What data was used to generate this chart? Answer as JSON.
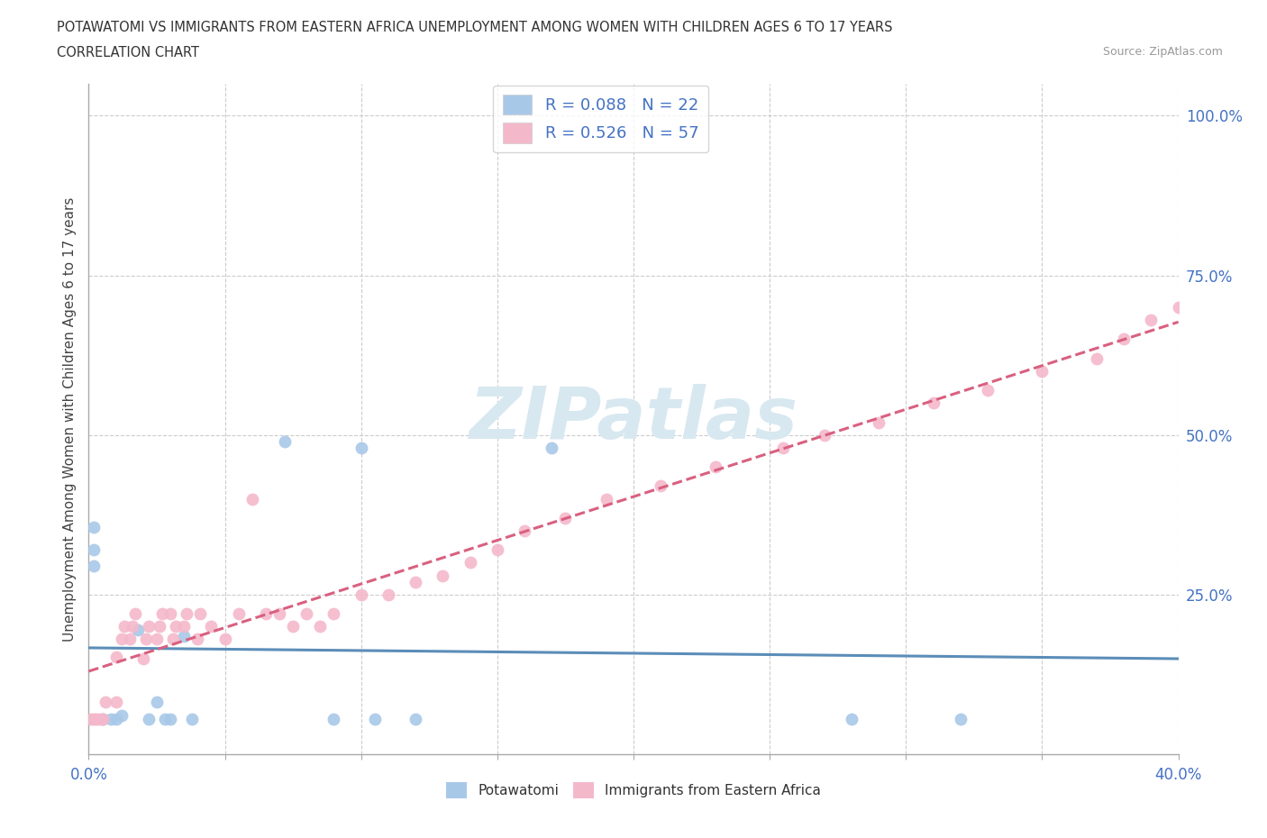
{
  "title_line1": "POTAWATOMI VS IMMIGRANTS FROM EASTERN AFRICA UNEMPLOYMENT AMONG WOMEN WITH CHILDREN AGES 6 TO 17 YEARS",
  "title_line2": "CORRELATION CHART",
  "source_text": "Source: ZipAtlas.com",
  "ylabel": "Unemployment Among Women with Children Ages 6 to 17 years",
  "xmin": 0.0,
  "xmax": 0.4,
  "ymin": 0.0,
  "ymax": 1.05,
  "color_blue": "#a8c8e8",
  "color_pink": "#f4b8cb",
  "color_blue_line": "#5b8db8",
  "color_pink_line": "#d96080",
  "legend_color": "#4472c4",
  "watermark_color": "#d8e8f0",
  "potawatomi_x": [
    0.002,
    0.002,
    0.002,
    0.005,
    0.008,
    0.01,
    0.012,
    0.018,
    0.022,
    0.025,
    0.028,
    0.03,
    0.035,
    0.038,
    0.072,
    0.09,
    0.1,
    0.105,
    0.12,
    0.17,
    0.28,
    0.32
  ],
  "potawatomi_y": [
    0.355,
    0.32,
    0.295,
    0.055,
    0.055,
    0.055,
    0.06,
    0.195,
    0.055,
    0.082,
    0.055,
    0.055,
    0.185,
    0.055,
    0.49,
    0.055,
    0.48,
    0.055,
    0.055,
    0.48,
    0.055,
    0.055
  ],
  "eastern_africa_x": [
    0.001,
    0.002,
    0.003,
    0.004,
    0.005,
    0.006,
    0.01,
    0.01,
    0.012,
    0.013,
    0.015,
    0.016,
    0.017,
    0.02,
    0.021,
    0.022,
    0.025,
    0.026,
    0.027,
    0.03,
    0.031,
    0.032,
    0.035,
    0.036,
    0.04,
    0.041,
    0.045,
    0.05,
    0.055,
    0.06,
    0.065,
    0.07,
    0.075,
    0.08,
    0.085,
    0.09,
    0.1,
    0.11,
    0.12,
    0.13,
    0.14,
    0.15,
    0.16,
    0.175,
    0.19,
    0.21,
    0.23,
    0.255,
    0.27,
    0.29,
    0.31,
    0.33,
    0.35,
    0.37,
    0.38,
    0.39,
    0.4
  ],
  "eastern_africa_y": [
    0.055,
    0.055,
    0.055,
    0.055,
    0.055,
    0.082,
    0.082,
    0.152,
    0.18,
    0.2,
    0.18,
    0.2,
    0.22,
    0.15,
    0.18,
    0.2,
    0.18,
    0.2,
    0.22,
    0.22,
    0.18,
    0.2,
    0.2,
    0.22,
    0.18,
    0.22,
    0.2,
    0.18,
    0.22,
    0.4,
    0.22,
    0.22,
    0.2,
    0.22,
    0.2,
    0.22,
    0.25,
    0.25,
    0.27,
    0.28,
    0.3,
    0.32,
    0.35,
    0.37,
    0.4,
    0.42,
    0.45,
    0.48,
    0.5,
    0.52,
    0.55,
    0.57,
    0.6,
    0.62,
    0.65,
    0.68,
    0.7
  ]
}
